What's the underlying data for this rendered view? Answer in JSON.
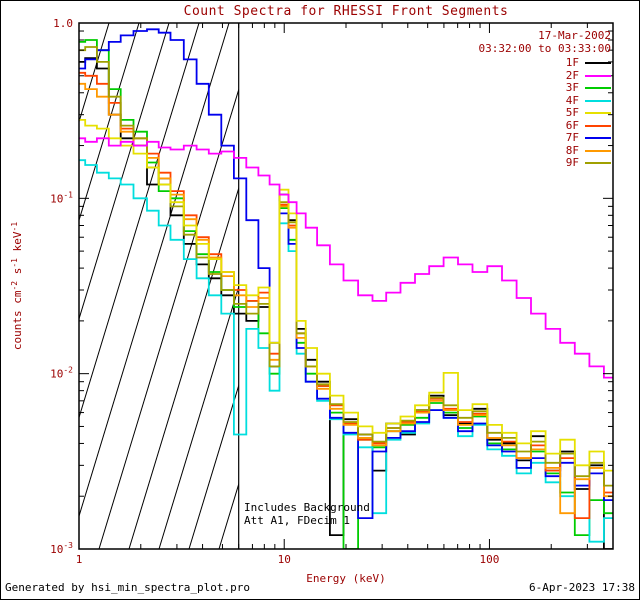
{
  "chart_data": {
    "type": "line",
    "title": "Count Spectra for RHESSI Front Segments",
    "date_label": "17-Mar-2002",
    "time_label": "03:32:00 to 03:33:00",
    "xlabel": "Energy (keV)",
    "ylabel_parts": [
      [
        "counts cm",
        0
      ],
      [
        "-2",
        1
      ],
      [
        " s",
        0
      ],
      [
        "-1",
        1
      ],
      [
        " keV",
        0
      ],
      [
        "-1",
        1
      ]
    ],
    "xscale": "log",
    "yscale": "log",
    "xlim": [
      1,
      400
    ],
    "ylim": [
      0.001,
      1.0
    ],
    "x_major_ticks": [
      1,
      10,
      100
    ],
    "x_tick_labels": [
      "1",
      "10",
      "100"
    ],
    "y_major_exponents": [
      0,
      -1,
      -2,
      -3
    ],
    "y_tick_labels": [
      [
        "1.0",
        null
      ],
      [
        "10",
        "-1"
      ],
      [
        "10",
        "-2"
      ],
      [
        "10",
        "-3"
      ]
    ],
    "hatch_region": {
      "x_start": 1,
      "x_end": 6
    },
    "vline_x": 6,
    "annotations": [
      "Includes Background",
      "Att A1, FDecim 1"
    ],
    "legend_position": "top-right",
    "text_color": "#9b0000",
    "axis_color": "#000000",
    "energies_keV": [
      1.0,
      1.15,
      1.3,
      1.5,
      1.7,
      2.0,
      2.3,
      2.6,
      3.0,
      3.5,
      4.0,
      4.6,
      5.3,
      6.1,
      7.0,
      8.0,
      9.0,
      10.0,
      11.0,
      12.0,
      13.5,
      15.5,
      18,
      21,
      25,
      29,
      34,
      40,
      47,
      55,
      65,
      76,
      90,
      106,
      125,
      147,
      173,
      204,
      240,
      283,
      333,
      392
    ],
    "series": [
      {
        "name": "1F",
        "color": "#000000",
        "values": [
          0.6,
          0.63,
          0.55,
          0.3,
          0.22,
          0.2,
          0.12,
          0.13,
          0.08,
          0.055,
          0.042,
          0.035,
          0.028,
          0.022,
          0.02,
          0.024,
          0.011,
          0.105,
          0.075,
          0.018,
          0.012,
          0.009,
          0.0012,
          0.0055,
          0.0045,
          0.0028,
          0.0052,
          0.0045,
          0.0062,
          0.0075,
          0.0058,
          0.0052,
          0.0063,
          0.0042,
          0.004,
          0.0032,
          0.0044,
          0.0028,
          0.0036,
          0.0022,
          0.003,
          0.001
        ]
      },
      {
        "name": "2F",
        "color": "#ff00ff",
        "values": [
          0.22,
          0.21,
          0.22,
          0.2,
          0.21,
          0.2,
          0.21,
          0.195,
          0.19,
          0.2,
          0.19,
          0.18,
          0.185,
          0.17,
          0.15,
          0.135,
          0.12,
          0.105,
          0.095,
          0.082,
          0.068,
          0.054,
          0.042,
          0.034,
          0.028,
          0.026,
          0.029,
          0.033,
          0.037,
          0.041,
          0.046,
          0.042,
          0.038,
          0.041,
          0.034,
          0.027,
          0.022,
          0.018,
          0.015,
          0.013,
          0.011,
          0.0095
        ]
      },
      {
        "name": "3F",
        "color": "#00cc00",
        "values": [
          0.78,
          0.8,
          0.7,
          0.42,
          0.28,
          0.24,
          0.16,
          0.11,
          0.1,
          0.065,
          0.048,
          0.038,
          0.03,
          0.024,
          0.026,
          0.017,
          0.01,
          0.088,
          0.058,
          0.015,
          0.01,
          0.0085,
          0.006,
          0.001,
          0.0042,
          0.0038,
          0.0047,
          0.0051,
          0.0056,
          0.0068,
          0.006,
          0.0049,
          0.0057,
          0.004,
          0.0037,
          0.0029,
          0.0036,
          0.0027,
          0.0021,
          0.0012,
          0.0019,
          0.0016
        ]
      },
      {
        "name": "4F",
        "color": "#00dede",
        "values": [
          0.165,
          0.155,
          0.14,
          0.13,
          0.12,
          0.1,
          0.085,
          0.07,
          0.058,
          0.045,
          0.035,
          0.028,
          0.022,
          0.0045,
          0.018,
          0.014,
          0.008,
          0.072,
          0.05,
          0.013,
          0.009,
          0.007,
          0.0055,
          0.0045,
          0.0038,
          0.0016,
          0.0042,
          0.0046,
          0.0052,
          0.0062,
          0.0056,
          0.0044,
          0.0051,
          0.0037,
          0.0034,
          0.0027,
          0.0031,
          0.0024,
          0.002,
          0.0023,
          0.0011,
          0.0015
        ]
      },
      {
        "name": "5F",
        "color": "#e6e000",
        "values": [
          0.28,
          0.26,
          0.25,
          0.22,
          0.2,
          0.18,
          0.15,
          0.12,
          0.095,
          0.07,
          0.055,
          0.045,
          0.038,
          0.032,
          0.028,
          0.031,
          0.015,
          0.112,
          0.082,
          0.02,
          0.014,
          0.01,
          0.0075,
          0.006,
          0.005,
          0.0046,
          0.0052,
          0.0057,
          0.0066,
          0.0078,
          0.0101,
          0.0062,
          0.0067,
          0.0051,
          0.0046,
          0.004,
          0.0047,
          0.0035,
          0.0042,
          0.003,
          0.0036,
          0.0028
        ]
      },
      {
        "name": "6F",
        "color": "#ff4400",
        "values": [
          0.52,
          0.5,
          0.45,
          0.35,
          0.25,
          0.22,
          0.18,
          0.14,
          0.11,
          0.08,
          0.06,
          0.048,
          0.038,
          0.03,
          0.026,
          0.029,
          0.013,
          0.092,
          0.07,
          0.017,
          0.011,
          0.0085,
          0.0066,
          0.0052,
          0.0042,
          0.004,
          0.0049,
          0.0053,
          0.0061,
          0.0072,
          0.0063,
          0.0053,
          0.0059,
          0.0043,
          0.0041,
          0.0033,
          0.0039,
          0.0028,
          0.0033,
          0.0015,
          0.0029,
          0.0021
        ]
      },
      {
        "name": "7F",
        "color": "#0000ee",
        "values": [
          0.55,
          0.62,
          0.7,
          0.78,
          0.85,
          0.9,
          0.92,
          0.88,
          0.8,
          0.62,
          0.45,
          0.3,
          0.2,
          0.13,
          0.075,
          0.04,
          0.015,
          0.082,
          0.055,
          0.014,
          0.009,
          0.0072,
          0.0056,
          0.0046,
          0.0015,
          0.0036,
          0.0043,
          0.0047,
          0.0053,
          0.0062,
          0.0056,
          0.0047,
          0.0052,
          0.0039,
          0.0036,
          0.0029,
          0.0033,
          0.0026,
          0.0031,
          0.0023,
          0.0027,
          0.0019
        ]
      },
      {
        "name": "8F",
        "color": "#ff9900",
        "values": [
          0.45,
          0.42,
          0.38,
          0.3,
          0.24,
          0.2,
          0.17,
          0.13,
          0.105,
          0.076,
          0.058,
          0.046,
          0.036,
          0.028,
          0.024,
          0.027,
          0.012,
          0.09,
          0.068,
          0.016,
          0.011,
          0.0082,
          0.0063,
          0.0051,
          0.0043,
          0.0039,
          0.0047,
          0.0052,
          0.006,
          0.007,
          0.0062,
          0.0051,
          0.0058,
          0.0043,
          0.0039,
          0.0033,
          0.0037,
          0.0029,
          0.0016,
          0.0025,
          0.0029,
          0.002
        ]
      },
      {
        "name": "9F",
        "color": "#a0a000",
        "values": [
          0.7,
          0.73,
          0.6,
          0.38,
          0.26,
          0.22,
          0.15,
          0.12,
          0.09,
          0.062,
          0.046,
          0.037,
          0.03,
          0.025,
          0.022,
          0.025,
          0.011,
          0.095,
          0.073,
          0.017,
          0.011,
          0.0087,
          0.0067,
          0.0053,
          0.0045,
          0.0041,
          0.0049,
          0.0054,
          0.0062,
          0.0073,
          0.0066,
          0.0056,
          0.0061,
          0.0046,
          0.0043,
          0.0036,
          0.0041,
          0.0031,
          0.0035,
          0.0026,
          0.0031,
          0.0023
        ]
      }
    ]
  },
  "footer": {
    "generated_by": "Generated by hsi_min_spectra_plot.pro",
    "timestamp": "6-Apr-2023 17:38"
  }
}
